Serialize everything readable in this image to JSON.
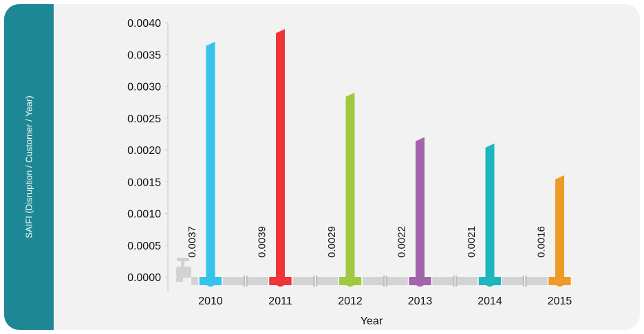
{
  "chart_data": {
    "type": "bar",
    "xlabel": "Year",
    "ylabel": "SAIFI (Disruption / Customer / Year)",
    "categories": [
      "2010",
      "2011",
      "2012",
      "2013",
      "2014",
      "2015"
    ],
    "values": [
      0.0037,
      0.0039,
      0.0029,
      0.0022,
      0.0021,
      0.0016
    ],
    "value_labels": [
      "0.0037",
      "0.0039",
      "0.0029",
      "0.0022",
      "0.0021",
      "0.0016"
    ],
    "colors": [
      "#35c3ec",
      "#ef3538",
      "#a0c940",
      "#a464ab",
      "#1eb5bd",
      "#ef9a26"
    ],
    "ylim": [
      0,
      0.004
    ],
    "yticks": [
      "0.0000",
      "0.0005",
      "0.0010",
      "0.0015",
      "0.0020",
      "0.0025",
      "0.0030",
      "0.0035",
      "0.0040"
    ],
    "grid": false,
    "legend": "none",
    "decoration": "pipe-and-valve"
  }
}
